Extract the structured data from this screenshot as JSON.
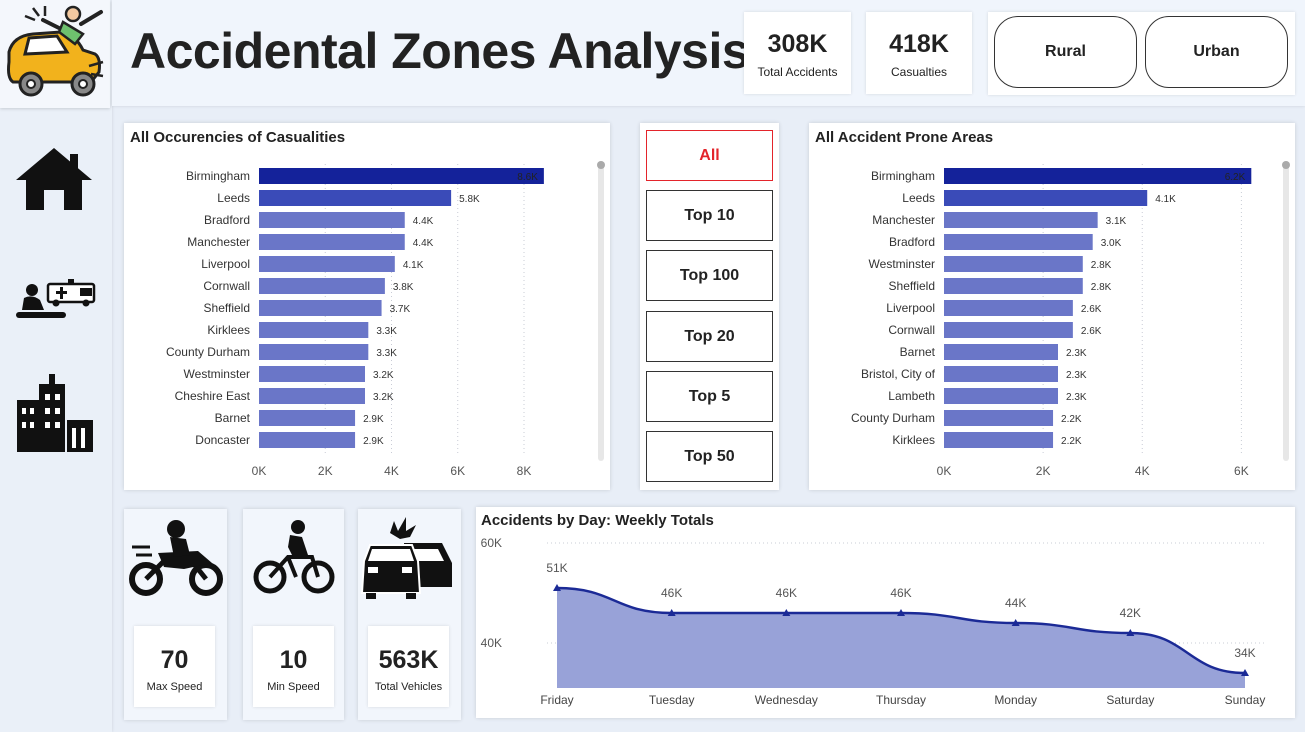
{
  "header": {
    "title": "Accidental Zones Analysis",
    "kpis": [
      {
        "value": "308K",
        "label": "Total Accidents"
      },
      {
        "value": "418K",
        "label": "Casualties"
      }
    ],
    "filters": [
      "Rural",
      "Urban"
    ]
  },
  "sidebar": {
    "icons": [
      "car-crash-logo-icon",
      "home-icon",
      "ambulance-casualty-icon",
      "city-buildings-icon"
    ]
  },
  "slicer": {
    "options": [
      "All",
      "Top 10",
      "Top 100",
      "Top 20",
      "Top 5",
      "Top 50"
    ],
    "selected": "All",
    "selected_color": "#e3242b"
  },
  "vehicle_kpis": [
    {
      "icon": "motorcycle-icon",
      "value": "70",
      "label": "Max Speed"
    },
    {
      "icon": "bicycle-icon",
      "value": "10",
      "label": "Min Speed"
    },
    {
      "icon": "car-collision-icon",
      "value": "563K",
      "label": "Total Vehicles"
    }
  ],
  "colors": {
    "bar_dark": "#14229a",
    "bar_mid": "#3a4bb8",
    "bar_light": "#6a76c8",
    "area_fill": "#98a2d8",
    "line": "#1b2a96"
  },
  "chart_data": [
    {
      "type": "bar",
      "orientation": "horizontal",
      "title": "All Occurencies of Casualities",
      "categories": [
        "Birmingham",
        "Leeds",
        "Bradford",
        "Manchester",
        "Liverpool",
        "Cornwall",
        "Sheffield",
        "Kirklees",
        "County Durham",
        "Westminster",
        "Cheshire East",
        "Barnet",
        "Doncaster"
      ],
      "values": [
        8.6,
        5.8,
        4.4,
        4.4,
        4.1,
        3.8,
        3.7,
        3.3,
        3.3,
        3.2,
        3.2,
        2.9,
        2.9
      ],
      "labels": [
        "8.6K",
        "5.8K",
        "4.4K",
        "4.4K",
        "4.1K",
        "3.8K",
        "3.7K",
        "3.3K",
        "3.3K",
        "3.2K",
        "3.2K",
        "2.9K",
        "2.9K"
      ],
      "xticks": [
        "0K",
        "2K",
        "4K",
        "6K",
        "8K"
      ],
      "xlim": [
        0,
        9.6
      ],
      "unit": "K"
    },
    {
      "type": "bar",
      "orientation": "horizontal",
      "title": "All Accident Prone Areas",
      "categories": [
        "Birmingham",
        "Leeds",
        "Manchester",
        "Bradford",
        "Westminster",
        "Sheffield",
        "Liverpool",
        "Cornwall",
        "Barnet",
        "Bristol, City of",
        "Lambeth",
        "County Durham",
        "Kirklees"
      ],
      "values": [
        6.2,
        4.1,
        3.1,
        3.0,
        2.8,
        2.8,
        2.6,
        2.6,
        2.3,
        2.3,
        2.3,
        2.2,
        2.2
      ],
      "labels": [
        "6.2K",
        "4.1K",
        "3.1K",
        "3.0K",
        "2.8K",
        "2.8K",
        "2.6K",
        "2.6K",
        "2.3K",
        "2.3K",
        "2.3K",
        "2.2K",
        "2.2K"
      ],
      "xticks": [
        "0K",
        "2K",
        "4K",
        "6K"
      ],
      "xlim": [
        0,
        6.9
      ],
      "unit": "K"
    },
    {
      "type": "area",
      "title": "Accidents by Day: Weekly Totals",
      "categories": [
        "Friday",
        "Tuesday",
        "Wednesday",
        "Thursday",
        "Monday",
        "Saturday",
        "Sunday"
      ],
      "values": [
        51,
        46,
        46,
        46,
        44,
        42,
        34
      ],
      "labels": [
        "51K",
        "46K",
        "46K",
        "46K",
        "44K",
        "42K",
        "34K"
      ],
      "yticks": [
        "60K",
        "40K"
      ],
      "ylim": [
        31,
        60
      ],
      "unit": "K"
    }
  ]
}
